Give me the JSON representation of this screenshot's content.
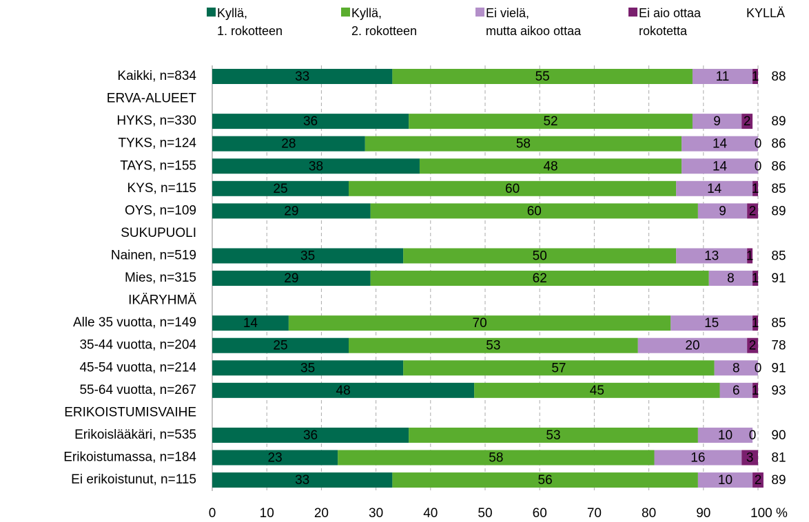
{
  "chart_data": {
    "type": "stacked_bar_horizontal",
    "categories": [
      "Kaikki, n=834",
      "ERVA-ALUEET",
      "HYKS, n=330",
      "TYKS, n=124",
      "TAYS, n=155",
      "KYS, n=115",
      "OYS, n=109",
      "SUKUPUOLI",
      "Nainen, n=519",
      "Mies, n=315",
      "IKÄRYHMÄ",
      "Alle 35 vuotta, n=149",
      "35-44 vuotta, n=204",
      "45-54 vuotta, n=214",
      "55-64 vuotta, n=267",
      "ERIKOISTUMISVAIHE",
      "Erikoislääkäri, n=535",
      "Erikoistumassa, n=184",
      "Ei erikoistunut, n=115"
    ],
    "series": [
      {
        "name": "Kyllä,\n1. rokotteen",
        "color": "#006b4f",
        "values": [
          33,
          null,
          36,
          28,
          38,
          25,
          29,
          null,
          35,
          29,
          null,
          14,
          25,
          35,
          48,
          null,
          36,
          23,
          33
        ]
      },
      {
        "name": "Kyllä,\n2. rokotteen",
        "color": "#5aad2e",
        "values": [
          55,
          null,
          52,
          58,
          48,
          60,
          60,
          null,
          50,
          62,
          null,
          70,
          53,
          57,
          45,
          null,
          53,
          58,
          56
        ]
      },
      {
        "name": "Ei vielä,\nmutta aikoo ottaa",
        "color": "#b38fc9",
        "values": [
          11,
          null,
          9,
          14,
          14,
          14,
          9,
          null,
          13,
          8,
          null,
          15,
          20,
          8,
          6,
          null,
          10,
          16,
          10
        ]
      },
      {
        "name": "Ei aio ottaa\nrokotetta",
        "color": "#7a1f6e",
        "values": [
          1,
          null,
          2,
          0,
          0,
          1,
          2,
          null,
          1,
          1,
          null,
          1,
          2,
          0,
          1,
          null,
          0,
          3,
          2
        ]
      }
    ],
    "totals": {
      "name": "KYLLÄ",
      "values": [
        88,
        null,
        89,
        86,
        86,
        85,
        89,
        null,
        85,
        91,
        null,
        85,
        78,
        91,
        93,
        null,
        90,
        81,
        89
      ]
    },
    "xlim": [
      0,
      100
    ],
    "xticks": [
      0,
      10,
      20,
      30,
      40,
      50,
      60,
      70,
      80,
      90,
      {
        "value": 100,
        "label": "100 %"
      }
    ],
    "grid": true
  }
}
